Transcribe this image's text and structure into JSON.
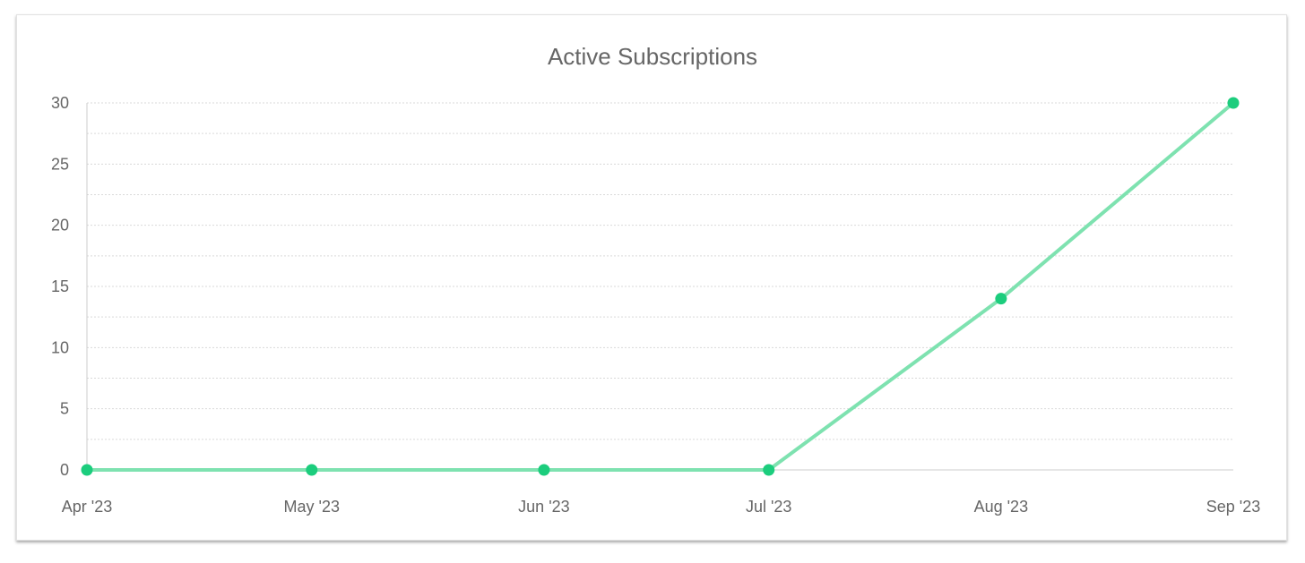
{
  "chart_data": {
    "type": "line",
    "title": "Active Subscriptions",
    "xlabel": "",
    "ylabel": "",
    "x": [
      "Apr '23",
      "May '23",
      "Jun '23",
      "Jul '23",
      "Aug '23",
      "Sep '23"
    ],
    "x_dates": [
      "2023-04-01",
      "2023-05-01",
      "2023-06-01",
      "2023-07-01",
      "2023-08-01",
      "2023-09-01"
    ],
    "series": [
      {
        "values": [
          0,
          0,
          0,
          0,
          14,
          30
        ]
      }
    ],
    "ylim": [
      0,
      30
    ],
    "yticks": [
      0,
      5,
      10,
      15,
      20,
      25,
      30
    ],
    "grid": true,
    "legend": "none",
    "colors": {
      "line": "#7ee2b0",
      "point": "#1ccd7d",
      "grid": "#d9d9d9",
      "axis": "#cccccc",
      "text": "#666666"
    }
  }
}
